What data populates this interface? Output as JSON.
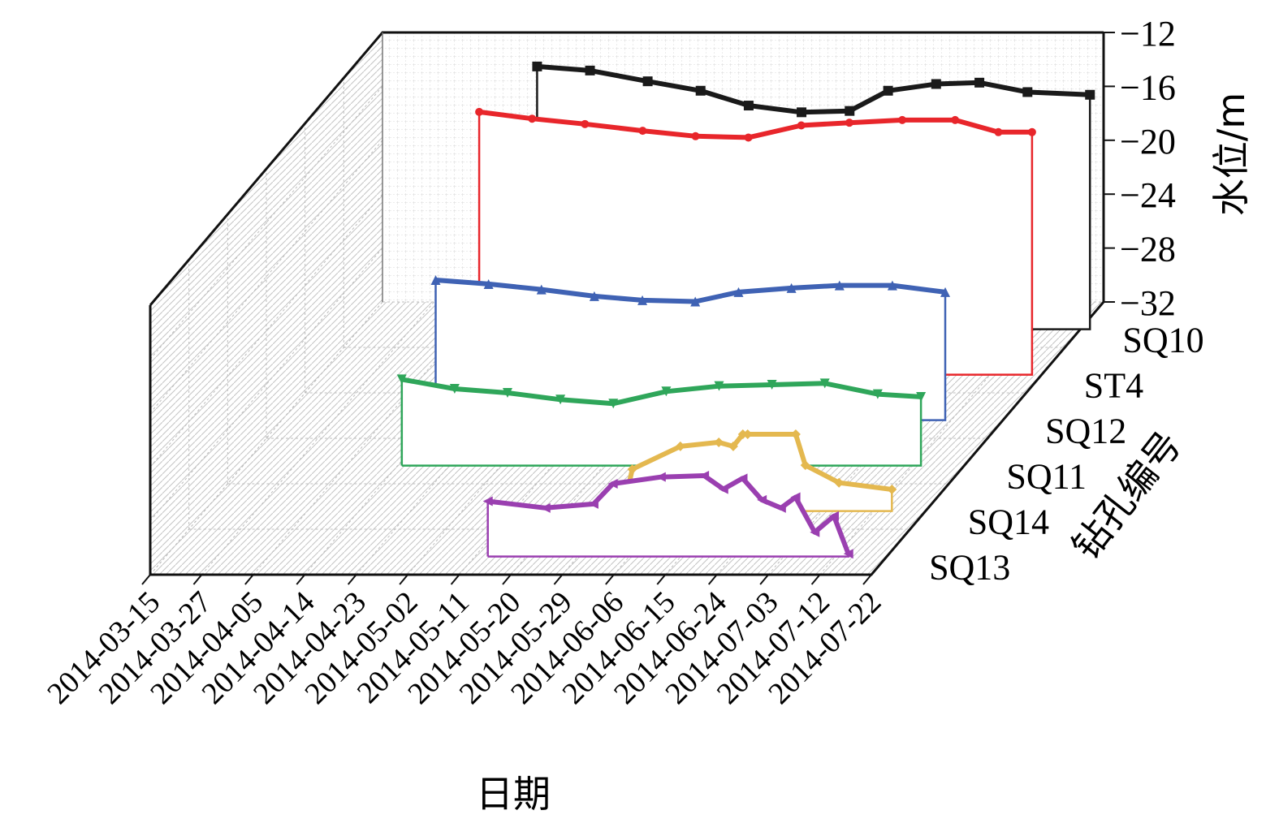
{
  "chart_data": {
    "type": "line",
    "subtype": "3d-waterfall",
    "title": "",
    "xlabel": "日期",
    "ylabel": "水位/m",
    "zlabel": "钻孔编号",
    "x_tick_labels": [
      "2014-03-15",
      "2014-03-27",
      "2014-04-05",
      "2014-04-14",
      "2014-04-23",
      "2014-05-02",
      "2014-05-11",
      "2014-05-20",
      "2014-05-29",
      "2014-06-06",
      "2014-06-15",
      "2014-06-24",
      "2014-07-03",
      "2014-07-12",
      "2014-07-22"
    ],
    "y_ticks": [
      "−12",
      "−16",
      "−20",
      "−24",
      "−28",
      "−32"
    ],
    "ylim": [
      -32,
      -12
    ],
    "z_categories": [
      "SQ10",
      "ST4",
      "SQ12",
      "SQ11",
      "SQ14",
      "SQ13"
    ],
    "grid": true,
    "series": [
      {
        "name": "SQ10",
        "color": "#1a1a1a",
        "marker": "square",
        "x": [
          "2014-04-21",
          "2014-05-02",
          "2014-05-14",
          "2014-05-25",
          "2014-06-04",
          "2014-06-15",
          "2014-06-25",
          "2014-07-03",
          "2014-07-13",
          "2014-07-22",
          "2014-08-01",
          "2014-08-14"
        ],
        "y": [
          -12.5,
          -12.8,
          -13.6,
          -14.3,
          -15.4,
          -15.9,
          -15.8,
          -14.3,
          -13.8,
          -13.7,
          -14.4,
          -14.6
        ]
      },
      {
        "name": "ST4",
        "color": "#e8262b",
        "marker": "circle",
        "x": [
          "2014-04-17",
          "2014-04-28",
          "2014-05-09",
          "2014-05-21",
          "2014-06-01",
          "2014-06-12",
          "2014-06-23",
          "2014-07-03",
          "2014-07-14",
          "2014-07-25",
          "2014-08-03",
          "2014-08-10"
        ],
        "y": [
          -12.5,
          -13.0,
          -13.4,
          -13.9,
          -14.3,
          -14.4,
          -13.5,
          -13.3,
          -13.1,
          -13.1,
          -14.0,
          -14.0
        ]
      },
      {
        "name": "SQ12",
        "color": "#3f62b4",
        "marker": "triangle-up",
        "x": [
          "2014-04-16",
          "2014-04-27",
          "2014-05-08",
          "2014-05-19",
          "2014-05-29",
          "2014-06-09",
          "2014-06-18",
          "2014-06-29",
          "2014-07-09",
          "2014-07-20",
          "2014-07-31"
        ],
        "y": [
          -21.6,
          -21.9,
          -22.3,
          -22.8,
          -23.1,
          -23.2,
          -22.5,
          -22.2,
          -22.0,
          -22.0,
          -22.5
        ]
      },
      {
        "name": "SQ11",
        "color": "#2fa65a",
        "marker": "triangle-down",
        "x": [
          "2014-04-17",
          "2014-04-28",
          "2014-05-09",
          "2014-05-20",
          "2014-05-31",
          "2014-06-11",
          "2014-06-22",
          "2014-07-03",
          "2014-07-14",
          "2014-07-25",
          "2014-08-03"
        ],
        "y": [
          -25.6,
          -26.3,
          -26.6,
          -27.1,
          -27.4,
          -26.5,
          -26.1,
          -26.0,
          -25.9,
          -26.7,
          -26.9
        ]
      },
      {
        "name": "SQ14",
        "color": "#e4b84f",
        "marker": "diamond",
        "x": [
          "2014-05-31",
          "2014-06-10",
          "2014-06-12",
          "2014-06-22",
          "2014-06-30",
          "2014-07-03",
          "2014-07-05",
          "2014-07-06",
          "2014-07-16",
          "2014-07-18",
          "2014-07-25",
          "2014-08-05"
        ],
        "y": [
          -32.7,
          -32.1,
          -28.9,
          -27.2,
          -26.9,
          -27.2,
          -26.3,
          -26.3,
          -26.3,
          -28.6,
          -29.9,
          -30.4
        ]
      },
      {
        "name": "SQ13",
        "color": "#9a3fb0",
        "marker": "triangle-left",
        "x": [
          "2014-05-21",
          "2014-06-02",
          "2014-06-12",
          "2014-06-16",
          "2014-06-26",
          "2014-07-05",
          "2014-07-09",
          "2014-07-13",
          "2014-07-17",
          "2014-07-21",
          "2014-07-24",
          "2014-07-28",
          "2014-08-01",
          "2014-08-04"
        ],
        "y": [
          -27.9,
          -28.4,
          -28.1,
          -26.6,
          -26.1,
          -26.0,
          -27.0,
          -26.2,
          -27.8,
          -28.4,
          -27.6,
          -30.2,
          -29.0,
          -31.8
        ]
      }
    ]
  }
}
